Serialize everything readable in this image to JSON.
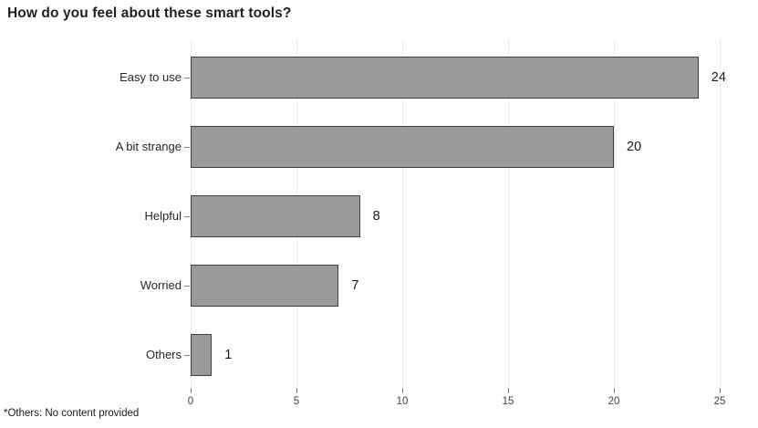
{
  "chart_data": {
    "type": "bar",
    "orientation": "horizontal",
    "title": "How do you feel about these smart tools?",
    "categories": [
      "Easy to use",
      "A bit strange",
      "Helpful",
      "Worried",
      "Others"
    ],
    "values": [
      24,
      20,
      8,
      7,
      1
    ],
    "xticks": [
      0,
      5,
      10,
      15,
      20,
      25
    ],
    "xlim": [
      0,
      25
    ],
    "grid": "vertical-dotted",
    "legend": "none",
    "footnote": "*Others: No content provided",
    "colors": {
      "bar_fill": "#9a9a9a",
      "bar_border": "#404040",
      "gridline": "#d9d9d9",
      "tick": "#808080",
      "text": "#1a1a1a"
    }
  }
}
